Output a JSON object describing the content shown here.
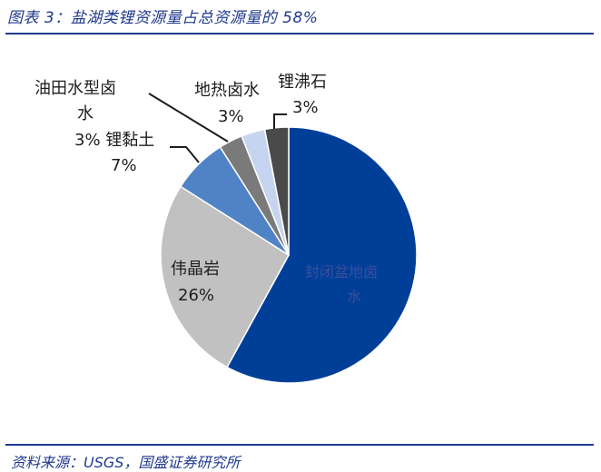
{
  "figure": {
    "title": "图表 3：盐湖类锂资源量占总资源量的 58%",
    "source": "资料来源：USGS，国盛证券研究所"
  },
  "chart_data": {
    "type": "pie",
    "start_angle_deg": 0,
    "direction": "clockwise",
    "slices": [
      {
        "name": "封闭盆地卤水",
        "value": 58,
        "label": "",
        "color": "#003f98",
        "label_lines": [
          "封闭盆地卤",
          "水"
        ]
      },
      {
        "name": "伟晶岩",
        "value": 26,
        "label": "26%",
        "color": "#c1c1c1",
        "label_lines": [
          "伟晶岩"
        ]
      },
      {
        "name": "锂黏土",
        "value": 7,
        "label": "7%",
        "color": "#5083c6",
        "label_lines": [
          "3% 锂黏土"
        ]
      },
      {
        "name": "油田水型卤水",
        "value": 3,
        "label": "3%",
        "color": "#7a7a7a",
        "label_lines": [
          "油田水型卤",
          "水"
        ]
      },
      {
        "name": "地热卤水",
        "value": 3,
        "label": "3%",
        "color": "#c6d5ef",
        "label_lines": [
          "地热卤水"
        ]
      },
      {
        "name": "锂沸石",
        "value": 3,
        "label": "3%",
        "color": "#4a4a4a",
        "label_lines": [
          "锂沸石"
        ]
      }
    ]
  }
}
